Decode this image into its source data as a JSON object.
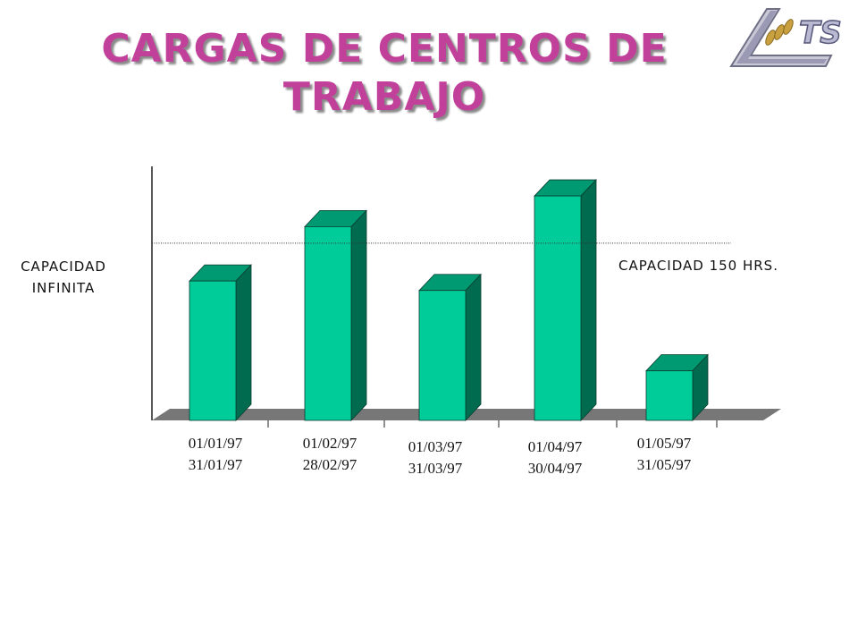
{
  "title": "CARGAS DE CENTROS DE TRABAJO",
  "logo_text": "TS",
  "capacity_left_label": [
    "CAPACIDAD",
    "INFINITA"
  ],
  "capacity_right_label": "CAPACIDAD 150 HRS.",
  "colors": {
    "title": "#c0409a",
    "bar_front": "#00cc99",
    "bar_side": "#006b4f",
    "bar_top": "#009a72",
    "floor": "#777777"
  },
  "chart_data": {
    "type": "bar",
    "title": "CARGAS DE CENTROS DE TRABAJO",
    "categories": [
      "01/01/97 31/01/97",
      "01/02/97 28/02/97",
      "01/03/97 31/03/97",
      "01/04/97 30/04/97",
      "01/05/97 31/05/97"
    ],
    "category_lines": [
      [
        "01/01/97",
        "31/01/97"
      ],
      [
        "01/02/97",
        "28/02/97"
      ],
      [
        "01/03/97",
        "31/03/97"
      ],
      [
        "01/04/97",
        "30/04/97"
      ],
      [
        "01/05/97",
        "31/05/97"
      ]
    ],
    "values": [
      118,
      164,
      110,
      190,
      42
    ],
    "ylim": [
      0,
      212
    ],
    "reference_line": {
      "label": "CAPACIDAD 150 HRS.",
      "value": 150
    },
    "grid": false,
    "legend": "none",
    "style": "3d"
  }
}
